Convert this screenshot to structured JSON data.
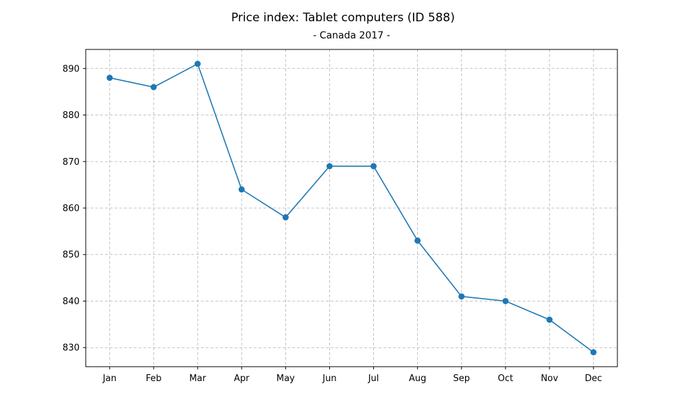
{
  "chart_data": {
    "type": "line",
    "title": "Price index: Tablet computers (ID 588)",
    "subtitle": "- Canada 2017 -",
    "xlabel": "",
    "ylabel": "",
    "categories": [
      "Jan",
      "Feb",
      "Mar",
      "Apr",
      "May",
      "Jun",
      "Jul",
      "Aug",
      "Sep",
      "Oct",
      "Nov",
      "Dec"
    ],
    "series": [
      {
        "values": [
          888,
          886,
          891,
          864,
          858,
          869,
          869,
          853,
          841,
          840,
          836,
          829
        ],
        "color": "#1f77b4"
      }
    ],
    "yticks": [
      830,
      840,
      850,
      860,
      870,
      880,
      890
    ],
    "ylim": [
      825.9,
      894.1
    ],
    "grid": true,
    "legend": "none"
  }
}
